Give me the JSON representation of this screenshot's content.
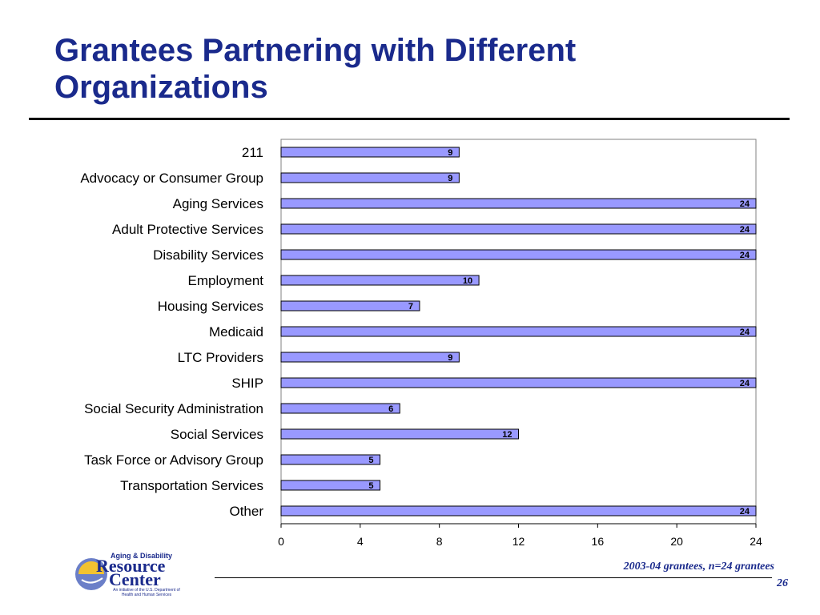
{
  "slide": {
    "title": "Grantees Partnering with Different Organizations",
    "footnote": "2003-04 grantees, n=24 grantees",
    "page_number": "26"
  },
  "logo": {
    "tagline": "Aging & Disability",
    "name_line1": "Resource",
    "name_line2": "Center",
    "subline": "An initiative of the U.S. Department of Health and Human Services"
  },
  "colors": {
    "title": "#1a2a8c",
    "bar_fill": "#9999ff",
    "bar_stroke": "#000000",
    "plot_border": "#808080"
  },
  "chart_data": {
    "type": "bar",
    "orientation": "horizontal",
    "title": "",
    "xlabel": "",
    "ylabel": "",
    "categories": [
      "211",
      "Advocacy or Consumer Group",
      "Aging Services",
      "Adult Protective Services",
      "Disability Services",
      "Employment",
      "Housing Services",
      "Medicaid",
      "LTC Providers",
      "SHIP",
      "Social Security Administration",
      "Social Services",
      "Task Force or Advisory Group",
      "Transportation Services",
      "Other"
    ],
    "values": [
      9,
      9,
      24,
      24,
      24,
      10,
      7,
      24,
      9,
      24,
      6,
      12,
      5,
      5,
      24
    ],
    "xlim": [
      0,
      24
    ],
    "xticks": [
      0,
      4,
      8,
      12,
      16,
      20,
      24
    ],
    "grid": false,
    "legend": "none",
    "data_labels": true
  }
}
